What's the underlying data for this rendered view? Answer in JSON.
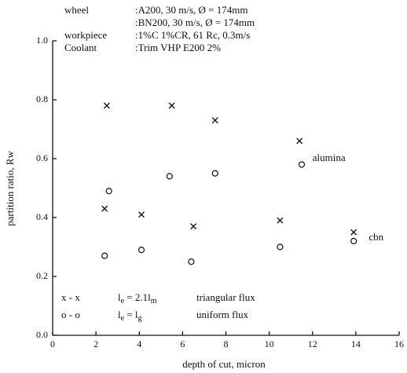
{
  "chart_data": {
    "type": "scatter",
    "x_label": "depth of cut, micron",
    "y_label": "partition ratio, Rw",
    "xlim": [
      0,
      16
    ],
    "xticks": [
      0,
      2,
      4,
      6,
      8,
      10,
      12,
      14,
      16
    ],
    "ylim": [
      0,
      1
    ],
    "yticks": [
      {
        "value": 0,
        "label": "0.0"
      },
      0.2,
      0.4,
      0.6,
      0.8,
      {
        "value": 1,
        "label": "1.0"
      }
    ],
    "header": [
      {
        "label": "wheel",
        "value": ":A200,  30 m/s,   Ø = 174mm"
      },
      {
        "value": ":BN200, 30 m/s,   Ø = 174mm"
      },
      {
        "label": "workpiece",
        "value": ":1%C 1%CR,  61 Rc,   0.3m/s"
      },
      {
        "label": "Coolant",
        "value": ":Trim VHP E200 2%"
      }
    ],
    "series": [
      {
        "name": "x - x",
        "marker": "x",
        "color": "#111111",
        "formula": [
          {
            "text": "l"
          },
          {
            "sub": "e"
          },
          {
            "text": " =  2.1"
          },
          {
            "text": "l"
          },
          {
            "sub": "m"
          }
        ],
        "description": "triangular flux",
        "x": [
          2.5,
          5.5,
          7.5,
          11.4,
          2.4,
          4.1,
          6.5,
          10.5,
          13.9
        ],
        "values": [
          0.78,
          0.78,
          0.73,
          0.66,
          0.43,
          0.41,
          0.37,
          0.39,
          0.35
        ]
      },
      {
        "name": "o - o",
        "marker": "o",
        "color": "#111111",
        "formula": [
          {
            "text": "l"
          },
          {
            "sub": "e"
          },
          {
            "text": " =  l"
          },
          {
            "sub": "g"
          }
        ],
        "description": "uniform flux",
        "x": [
          2.6,
          5.4,
          7.5,
          11.5,
          2.4,
          4.1,
          6.4,
          10.5,
          13.9
        ],
        "values": [
          0.49,
          0.54,
          0.55,
          0.58,
          0.27,
          0.29,
          0.25,
          0.3,
          0.32
        ]
      }
    ],
    "annotations": [
      {
        "text": "alumina",
        "x": 12,
        "y": 0.6
      },
      {
        "text": "cbn",
        "x": 14.6,
        "y": 0.33
      }
    ]
  }
}
